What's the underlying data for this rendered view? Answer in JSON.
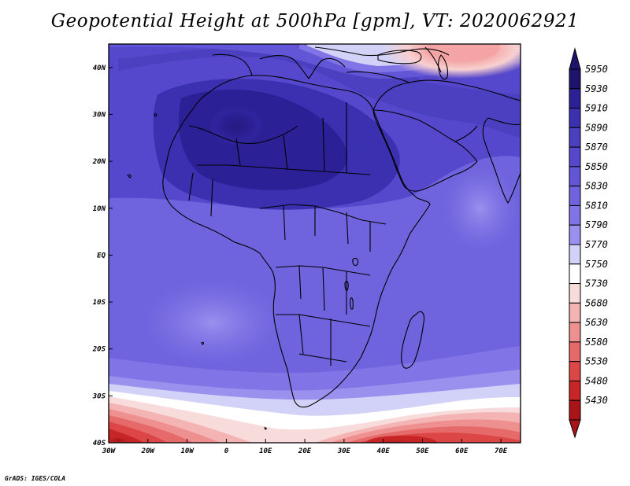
{
  "title": "Geopotential Height at 500hPa [gpm], VT: 2020062921",
  "credit": "GrADS: IGES/COLA",
  "map": {
    "lon_labels": [
      "30W",
      "20W",
      "10W",
      "0",
      "10E",
      "20E",
      "30E",
      "40E",
      "50E",
      "60E",
      "70E"
    ],
    "lat_labels": [
      "40N",
      "30N",
      "20N",
      "10N",
      "EQ",
      "10S",
      "20S",
      "30S",
      "40S"
    ],
    "lon_range": [
      -30,
      75
    ],
    "lat_range": [
      -40,
      45
    ]
  },
  "colorbar": {
    "levels": [
      "5950",
      "5930",
      "5910",
      "5890",
      "5870",
      "5850",
      "5830",
      "5810",
      "5790",
      "5770",
      "5750",
      "5730",
      "5680",
      "5630",
      "5580",
      "5530",
      "5480",
      "5430"
    ],
    "colors": [
      "#1e146e",
      "#2c2096",
      "#3a30b0",
      "#4a40c0",
      "#5648cc",
      "#6256d6",
      "#7064de",
      "#8074e6",
      "#9a90ee",
      "#d2d2f8",
      "#ffffff",
      "#f8dcdc",
      "#f4b4b4",
      "#ee9090",
      "#e66a6a",
      "#dc4646",
      "#c82626",
      "#a81418"
    ]
  }
}
